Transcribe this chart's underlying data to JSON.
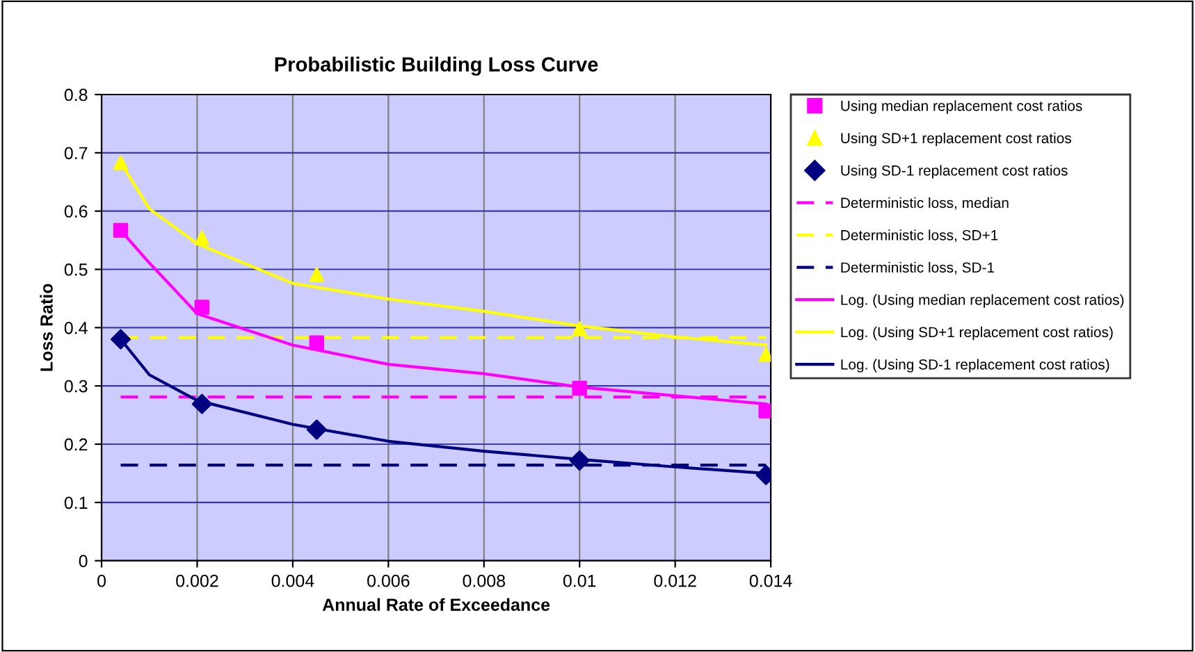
{
  "chart_data": {
    "type": "scatter",
    "title": "Probabilistic Building Loss Curve",
    "xlabel": "Annual Rate of Exceedance",
    "ylabel": "Loss Ratio",
    "xlim": [
      0,
      0.014
    ],
    "xticks": [
      0,
      0.002,
      0.004,
      0.006,
      0.008,
      0.01,
      0.012,
      0.014
    ],
    "ylim": [
      0,
      0.8
    ],
    "yticks": [
      0,
      0.1,
      0.2,
      0.3,
      0.4,
      0.5,
      0.6,
      0.7,
      0.8
    ],
    "grid": true,
    "legend": "right",
    "series": [
      {
        "name": "Using median replacement cost ratios",
        "marker": "square",
        "color": "#ff00ff",
        "x": [
          0.0004,
          0.0021,
          0.0045,
          0.01,
          0.0139
        ],
        "values": [
          0.567,
          0.435,
          0.374,
          0.296,
          0.257
        ]
      },
      {
        "name": "Using SD+1 replacement cost ratios",
        "marker": "triangle",
        "color": "#ffff00",
        "x": [
          0.0004,
          0.0021,
          0.0045,
          0.01,
          0.0139
        ],
        "values": [
          0.683,
          0.554,
          0.491,
          0.398,
          0.354
        ]
      },
      {
        "name": "Using SD-1 replacement cost ratios",
        "marker": "diamond",
        "color": "#000080",
        "x": [
          0.0004,
          0.0021,
          0.0045,
          0.01,
          0.0139
        ],
        "values": [
          0.38,
          0.269,
          0.225,
          0.172,
          0.147
        ]
      },
      {
        "name": "Deterministic loss, median",
        "type": "line",
        "line_style": "dashed",
        "color": "#ff00ff",
        "x": [
          0.0004,
          0.0139
        ],
        "values": [
          0.281,
          0.281
        ]
      },
      {
        "name": "Deterministic loss, SD+1",
        "type": "line",
        "line_style": "dashed",
        "color": "#ffff00",
        "x": [
          0.0004,
          0.0139
        ],
        "values": [
          0.383,
          0.383
        ]
      },
      {
        "name": "Deterministic loss, SD-1",
        "type": "line",
        "line_style": "dashed",
        "color": "#000080",
        "x": [
          0.0004,
          0.0139
        ],
        "values": [
          0.164,
          0.164
        ]
      },
      {
        "name": "Log. (Using median replacement cost ratios)",
        "type": "line",
        "line_style": "solid",
        "color": "#ff00ff",
        "x": [
          0.0004,
          0.001,
          0.002,
          0.004,
          0.006,
          0.008,
          0.01,
          0.012,
          0.0139
        ],
        "values": [
          0.567,
          0.511,
          0.424,
          0.37,
          0.337,
          0.321,
          0.298,
          0.283,
          0.269
        ]
      },
      {
        "name": "Log. (Using SD+1 replacement cost ratios)",
        "type": "line",
        "line_style": "solid",
        "color": "#ffff00",
        "x": [
          0.0004,
          0.001,
          0.002,
          0.004,
          0.006,
          0.008,
          0.01,
          0.012,
          0.0139
        ],
        "values": [
          0.683,
          0.604,
          0.544,
          0.476,
          0.449,
          0.428,
          0.403,
          0.384,
          0.37
        ]
      },
      {
        "name": "Log. (Using SD-1 replacement cost ratios)",
        "type": "line",
        "line_style": "solid",
        "color": "#000080",
        "x": [
          0.0004,
          0.001,
          0.002,
          0.004,
          0.006,
          0.008,
          0.01,
          0.012,
          0.0139
        ],
        "values": [
          0.38,
          0.319,
          0.275,
          0.234,
          0.205,
          0.188,
          0.174,
          0.161,
          0.15
        ]
      }
    ]
  }
}
